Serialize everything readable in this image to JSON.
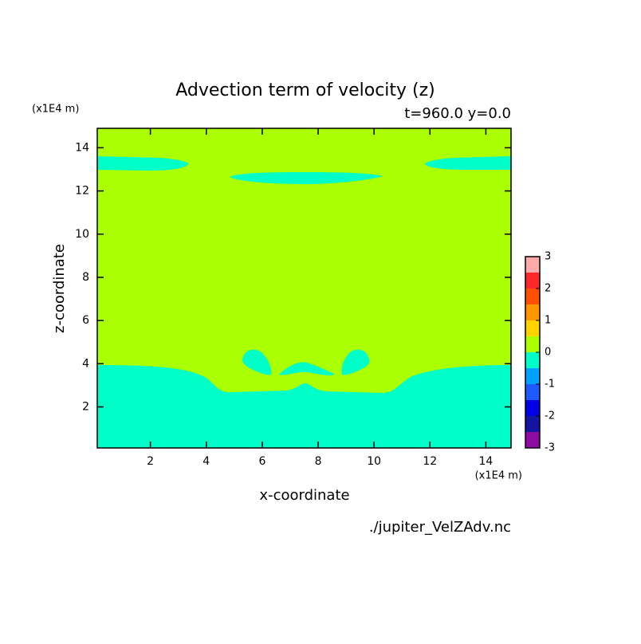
{
  "chart_data": {
    "type": "contour",
    "title": "Advection term of velocity (z)",
    "subtitle": "t=960.0 y=0.0",
    "x_label": "x-coordinate",
    "y_label": "z-coordinate",
    "x_unit": "(x1E4 m)",
    "y_unit": "(x1E4 m)",
    "source": "./jupiter_VelZAdv.nc",
    "xlim": [
      0.1,
      14.9
    ],
    "ylim": [
      0.1,
      14.9
    ],
    "xticks": [
      2,
      4,
      6,
      8,
      10,
      12,
      14
    ],
    "yticks": [
      2,
      4,
      6,
      8,
      10,
      12,
      14
    ],
    "levels": [
      -3,
      -2.5,
      -2,
      -1.5,
      -1,
      -0.5,
      0,
      0.5,
      1,
      1.5,
      2,
      2.5,
      3
    ],
    "colors": [
      "#8c0ca0",
      "#1414a0",
      "#0000e6",
      "#1e5aff",
      "#00a0ff",
      "#00ffc8",
      "#aaff00",
      "#ffd200",
      "#ff9600",
      "#ff5000",
      "#ff2828",
      "#ffaaaa"
    ],
    "colorbar_ticks": [
      -3,
      -2,
      -1,
      0,
      1,
      2,
      3
    ]
  }
}
